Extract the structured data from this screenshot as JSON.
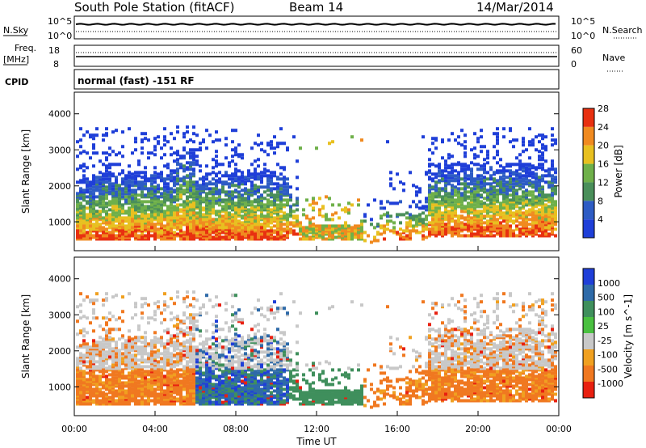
{
  "header": {
    "station": "South Pole Station (fitACF)",
    "beam": "Beam 14",
    "date": "14/Mar/2014"
  },
  "status_panels": {
    "nsky_label": "N.Sky",
    "nsky_top": "10^5",
    "nsky_bottom": "10^0",
    "nsearch_label": "N.Search",
    "freq_label": "Freq.",
    "freq_unit": "[MHz]",
    "freq_top": "18",
    "freq_bottom": "8",
    "nave_label": "Nave",
    "nave_top": "60",
    "nave_bottom": "0",
    "cpid_label": "CPID",
    "cpid_text": "normal (fast) -151 RF"
  },
  "chart_data": [
    {
      "type": "heatmap",
      "name": "power",
      "ylabel": "Slant Range [km]",
      "ylim": [
        200,
        4600
      ],
      "yticks": [
        "1000",
        "2000",
        "3000",
        "4000"
      ],
      "colorbar_label": "Power [dB]",
      "colorbar_ticks": [
        "4",
        "8",
        "12",
        "16",
        "20",
        "24",
        "28"
      ],
      "colors": [
        "#1f3fd8",
        "#2e5cc4",
        "#4a8f5a",
        "#6fb04a",
        "#e8c020",
        "#f08a20",
        "#e83010"
      ]
    },
    {
      "type": "heatmap",
      "name": "velocity",
      "ylabel": "Slant Range [km]",
      "ylim": [
        200,
        4600
      ],
      "yticks": [
        "1000",
        "2000",
        "3000",
        "4000"
      ],
      "xlabel": "Time UT",
      "xticks": [
        "00:00",
        "04:00",
        "08:00",
        "12:00",
        "16:00",
        "20:00",
        "00:00"
      ],
      "colorbar_label": "Velocity [m s^-1]",
      "colorbar_ticks": [
        "1000",
        "500",
        "100",
        "25",
        "-25",
        "-100",
        "-500",
        "-1000"
      ],
      "colors": [
        "#1f3fd8",
        "#2e6aa8",
        "#3f8f5c",
        "#4ac040",
        "#c8c8c8",
        "#f0a020",
        "#f07820",
        "#e82010"
      ]
    }
  ]
}
